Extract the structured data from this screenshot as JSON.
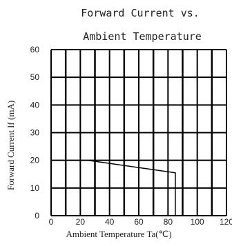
{
  "chart_data": {
    "type": "line",
    "title": "Forward Current vs.",
    "subtitle": "Ambient Temperature",
    "xlabel": "Ambient Temperature Ta(℃)",
    "ylabel": "Forward Current If (mA)",
    "xlim": [
      0,
      120
    ],
    "ylim": [
      0,
      60
    ],
    "x_ticks": [
      "0",
      "20",
      "40",
      "60",
      "80",
      "100",
      "120"
    ],
    "y_ticks": [
      "0",
      "10",
      "20",
      "30",
      "40",
      "50",
      "60"
    ],
    "grid": true,
    "series": [
      {
        "x": [
          25,
          85,
          85
        ],
        "y": [
          20,
          15.5,
          0
        ]
      }
    ]
  },
  "colors": {
    "grid": "#000000",
    "line": "#000000",
    "text": "#222222"
  }
}
